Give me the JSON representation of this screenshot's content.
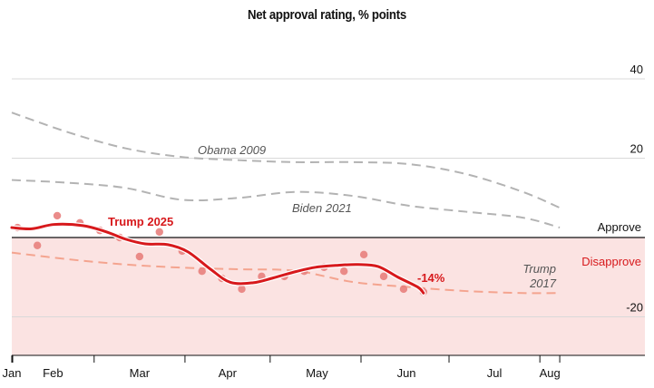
{
  "chart_data": {
    "type": "line",
    "title": "Net approval rating, % points",
    "xlabel": "",
    "ylabel": "",
    "ylim": [
      -30,
      40
    ],
    "xlim_days": [
      0,
      223
    ],
    "grid": true,
    "y_ticks": [
      {
        "value": 40,
        "label": "40"
      },
      {
        "value": 20,
        "label": "20"
      },
      {
        "value": -20,
        "label": "-20"
      }
    ],
    "zero_labels": {
      "above": "Approve",
      "below": "Disapprove"
    },
    "x_ticks_days": [
      0,
      29,
      61,
      91,
      123,
      154,
      186,
      193
    ],
    "x_labels": [
      {
        "label": "Jan",
        "day": 0
      },
      {
        "label": "Feb",
        "day": 14.5
      },
      {
        "label": "Mar",
        "day": 45
      },
      {
        "label": "Apr",
        "day": 76
      },
      {
        "label": "May",
        "day": 107.5
      },
      {
        "label": "Jun",
        "day": 139
      },
      {
        "label": "Jul",
        "day": 170
      },
      {
        "label": "Aug",
        "day": 189.5
      }
    ],
    "colors": {
      "trump2025": "#d7191c",
      "trump2025_dots": "#e8807d",
      "trump2017": "#f4a48f",
      "comparison": "#b3b3b3",
      "disapprove_band": "#fbe3e2",
      "disapprove_text": "#d7191c"
    },
    "series": [
      {
        "name": "Obama 2009",
        "label": "Obama 2009",
        "style": "dashed",
        "x": [
          0,
          20,
          40,
          60,
          80,
          100,
          120,
          140,
          160,
          180,
          193
        ],
        "y": [
          31.5,
          26.5,
          22.5,
          20.3,
          19.5,
          19,
          19,
          18.5,
          16,
          11.5,
          7.5
        ]
      },
      {
        "name": "Biden 2021",
        "label": "Biden 2021",
        "style": "dashed",
        "x": [
          0,
          20,
          40,
          60,
          80,
          100,
          120,
          140,
          160,
          180,
          193
        ],
        "y": [
          14.5,
          13.8,
          12.5,
          9.5,
          10,
          11.5,
          10.5,
          8,
          6.5,
          5,
          2.5
        ]
      },
      {
        "name": "Trump 2017",
        "label_line1": "Trump",
        "label_line2": "2017",
        "style": "dashed",
        "x": [
          0,
          20,
          40,
          60,
          80,
          100,
          120,
          140,
          160,
          180,
          193
        ],
        "y": [
          -3.8,
          -5.5,
          -6.8,
          -7.6,
          -8,
          -8.4,
          -11.2,
          -12.5,
          -13.5,
          -14,
          -14
        ]
      },
      {
        "name": "Trump 2025",
        "label": "Trump 2025",
        "end_label": "-14%",
        "style": "solid",
        "x": [
          0,
          7,
          15,
          25,
          33,
          40,
          47,
          55,
          62,
          70,
          77,
          85,
          92,
          100,
          107,
          115,
          122,
          129,
          136,
          143,
          145
        ],
        "y": [
          2.5,
          2.2,
          3.3,
          3,
          1.5,
          -0.4,
          -1.6,
          -1.8,
          -3.6,
          -8,
          -11.3,
          -11.4,
          -10.2,
          -8.6,
          -7.5,
          -7,
          -6.8,
          -7.3,
          -10,
          -12.5,
          -14
        ],
        "dots_x": [
          2,
          9,
          16,
          24,
          31,
          38,
          45,
          52,
          60,
          67,
          74,
          81,
          88,
          96,
          103,
          110,
          117,
          124,
          131,
          138,
          145
        ],
        "dots_y": [
          2.5,
          -2,
          5.5,
          3.7,
          1.8,
          0,
          -4.8,
          1.4,
          -3.4,
          -8.5,
          -10.3,
          -13,
          -9.8,
          -9.8,
          -8.5,
          -7.5,
          -8.5,
          -4.3,
          -9.8,
          -13,
          -13.7
        ]
      }
    ]
  }
}
